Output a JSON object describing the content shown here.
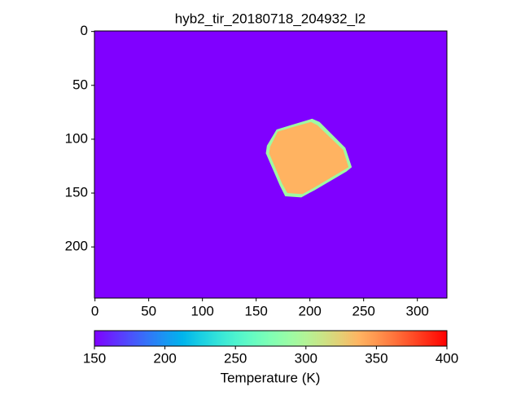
{
  "chart_data": {
    "type": "image",
    "title": "hyb2_tir_20180718_204932_l2",
    "colormap": "rainbow",
    "background_value": 150,
    "regions": [
      {
        "x": [
          169,
          182,
          202,
          209,
          233,
          239,
          234,
          205,
          192,
          177,
          172,
          159,
          160
        ],
        "y": [
          91,
          87,
          81,
          84,
          108,
          126,
          130,
          147,
          154,
          153,
          143,
          113,
          106
        ],
        "value": 290
      },
      {
        "x": [
          170,
          183,
          201,
          207,
          231,
          236,
          231,
          204,
          193,
          179,
          174,
          162,
          163
        ],
        "y": [
          93,
          89,
          84,
          87,
          110,
          126,
          129,
          145,
          151,
          150,
          141,
          113,
          107
        ],
        "value": 338
      }
    ],
    "xlim": [
      -0.5,
      327.5
    ],
    "ylim": [
      247.5,
      -0.5
    ],
    "xticks": [
      0,
      50,
      100,
      150,
      200,
      250,
      300
    ],
    "yticks": [
      0,
      50,
      100,
      150,
      200
    ],
    "colorbar": {
      "clim": [
        150,
        400
      ],
      "ticks": [
        150,
        200,
        250,
        300,
        350,
        400
      ],
      "label": "Temperature (K)"
    }
  }
}
